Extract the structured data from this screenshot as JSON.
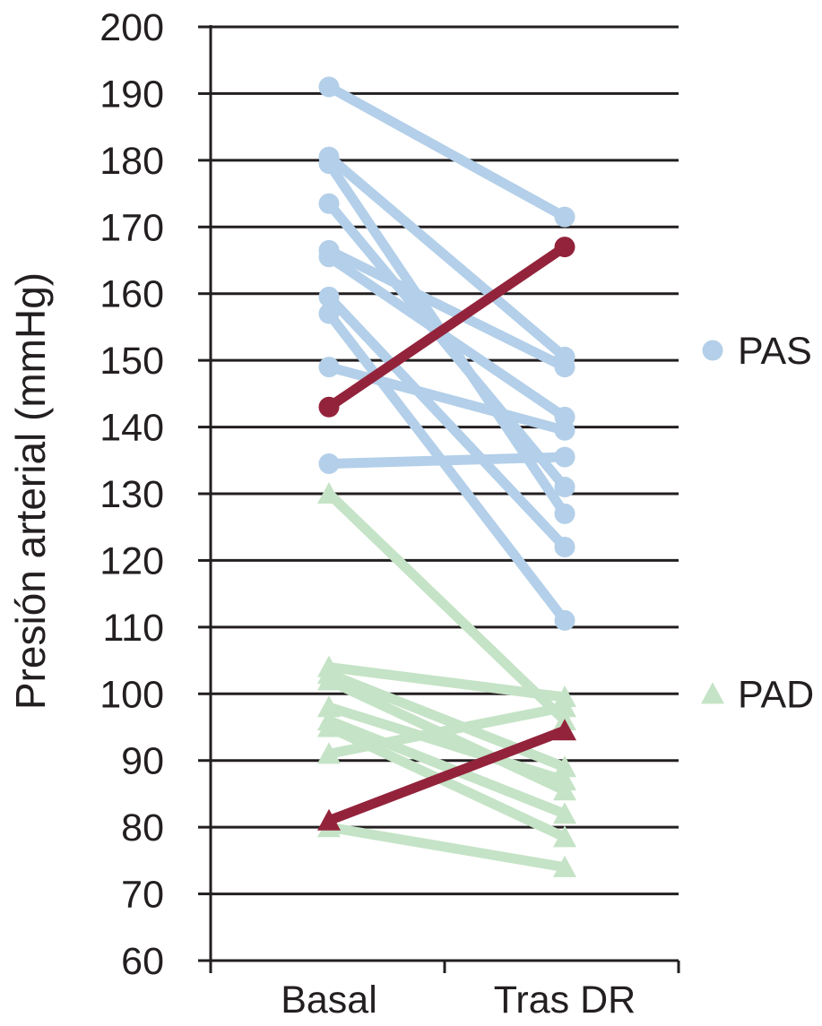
{
  "chart_data": {
    "type": "line",
    "ylabel": "Presión arterial (mmHg)",
    "xlabel": "",
    "categories": [
      "Basal",
      "Tras DR"
    ],
    "ylim": [
      60,
      200
    ],
    "yticks": [
      200,
      190,
      180,
      170,
      160,
      150,
      140,
      130,
      120,
      110,
      100,
      90,
      80,
      70,
      60
    ],
    "grid": true,
    "legend": [
      {
        "label": "PAS",
        "marker": "circle",
        "color": "#b3cfe9"
      },
      {
        "label": "PAD",
        "marker": "triangle",
        "color": "#c5e3c6"
      }
    ],
    "colors": {
      "PAS": "#b3cfe9",
      "PAD": "#c5e3c6",
      "highlight": "#93233b",
      "grid": "#231f20"
    },
    "groups": [
      {
        "group": "PAS",
        "marker": "circle",
        "series": [
          {
            "values": [
              191,
              171.5
            ],
            "highlight": false
          },
          {
            "values": [
              180.5,
              150.5
            ],
            "highlight": false
          },
          {
            "values": [
              179.5,
              127
            ],
            "highlight": false
          },
          {
            "values": [
              173.5,
              131
            ],
            "highlight": false
          },
          {
            "values": [
              166.5,
              149
            ],
            "highlight": false
          },
          {
            "values": [
              165.5,
              141.5
            ],
            "highlight": false
          },
          {
            "values": [
              159.5,
              122
            ],
            "highlight": false
          },
          {
            "values": [
              157,
              111
            ],
            "highlight": false
          },
          {
            "values": [
              149,
              139.5
            ],
            "highlight": false
          },
          {
            "values": [
              134.5,
              135.5
            ],
            "highlight": false
          },
          {
            "values": [
              143,
              167
            ],
            "highlight": true
          }
        ]
      },
      {
        "group": "PAD",
        "marker": "triangle",
        "series": [
          {
            "values": [
              130,
              96
            ],
            "highlight": false
          },
          {
            "values": [
              104,
              99.5
            ],
            "highlight": false
          },
          {
            "values": [
              103,
              89
            ],
            "highlight": false
          },
          {
            "values": [
              102,
              85.5
            ],
            "highlight": false
          },
          {
            "values": [
              98,
              87
            ],
            "highlight": false
          },
          {
            "values": [
              96,
              82
            ],
            "highlight": false
          },
          {
            "values": [
              95,
              78.5
            ],
            "highlight": false
          },
          {
            "values": [
              91,
              98
            ],
            "highlight": false
          },
          {
            "values": [
              80,
              74
            ],
            "highlight": false
          },
          {
            "values": [
              81,
              94.5
            ],
            "highlight": true
          }
        ]
      }
    ]
  }
}
